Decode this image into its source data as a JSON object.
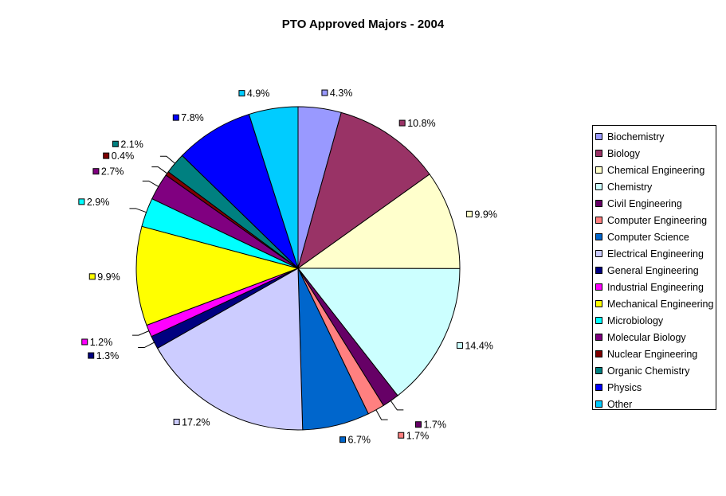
{
  "chart_data": {
    "type": "pie",
    "title": "PTO Approved Majors - 2004",
    "legend_position": "right",
    "slices": [
      {
        "name": "Biochemistry",
        "value": 4.3,
        "label": "4.3%",
        "color": "#9999ff"
      },
      {
        "name": "Biology",
        "value": 10.8,
        "label": "10.8%",
        "color": "#993366"
      },
      {
        "name": "Chemical Engineering",
        "value": 9.9,
        "label": "9.9%",
        "color": "#ffffcc"
      },
      {
        "name": "Chemistry",
        "value": 14.4,
        "label": "14.4%",
        "color": "#ccffff"
      },
      {
        "name": "Civil Engineering",
        "value": 1.7,
        "label": "1.7%",
        "color": "#660066"
      },
      {
        "name": "Computer Engineering",
        "value": 1.7,
        "label": "1.7%",
        "color": "#ff8080"
      },
      {
        "name": "Computer Science",
        "value": 6.7,
        "label": "6.7%",
        "color": "#0066cc"
      },
      {
        "name": "Electrical Engineering",
        "value": 17.2,
        "label": "17.2%",
        "color": "#ccccff"
      },
      {
        "name": "General Engineering",
        "value": 1.3,
        "label": "1.3%",
        "color": "#000080"
      },
      {
        "name": "Industrial Engineering",
        "value": 1.2,
        "label": "1.2%",
        "color": "#ff00ff"
      },
      {
        "name": "Mechanical Engineering",
        "value": 9.9,
        "label": "9.9%",
        "color": "#ffff00"
      },
      {
        "name": "Microbiology",
        "value": 2.9,
        "label": "2.9%",
        "color": "#00ffff"
      },
      {
        "name": "Molecular Biology",
        "value": 2.7,
        "label": "2.7%",
        "color": "#800080"
      },
      {
        "name": "Nuclear Engineering",
        "value": 0.4,
        "label": "0.4%",
        "color": "#800000"
      },
      {
        "name": "Organic Chemistry",
        "value": 2.1,
        "label": "2.1%",
        "color": "#008080"
      },
      {
        "name": "Physics",
        "value": 7.8,
        "label": "7.8%",
        "color": "#0000ff"
      },
      {
        "name": "Other",
        "value": 4.9,
        "label": "4.9%",
        "color": "#00ccff"
      }
    ]
  }
}
